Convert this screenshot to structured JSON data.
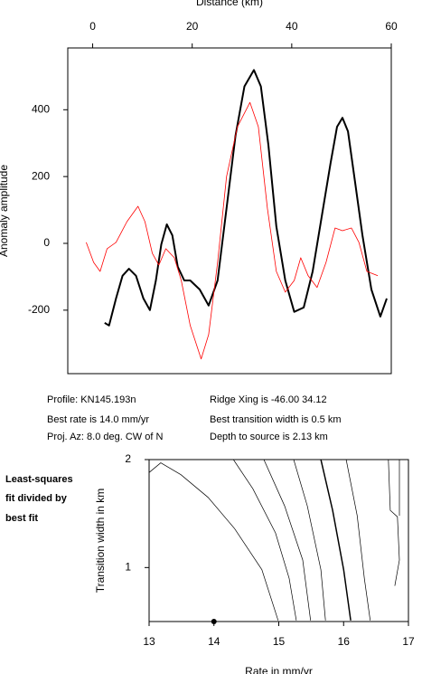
{
  "chart_data": [
    {
      "type": "line",
      "xlabel": "Distance (km)",
      "ylabel": "Anomaly amplitude",
      "xlim": [
        -5,
        60
      ],
      "xticks": [
        0,
        20,
        40,
        60
      ],
      "ylim": [
        -390,
        585
      ],
      "yticks": [
        -200,
        0,
        200,
        400
      ],
      "series": [
        {
          "color": "#000000",
          "linewidth": 2,
          "x": [
            2.4,
            3.3,
            4.7,
            6,
            7.3,
            8.7,
            10.2,
            11.5,
            12.7,
            13.8,
            14.9,
            16,
            17.1,
            18.4,
            19.6,
            21.5,
            23.3,
            25.1,
            26.9,
            28.7,
            30.5,
            32.4,
            33.8,
            35.3,
            36.9,
            38.7,
            40.5,
            42.4,
            44.2,
            46,
            47.8,
            49.1,
            50.2,
            51.3,
            52.7,
            54.2,
            56,
            57.8,
            59.1
          ],
          "values": [
            -238,
            -246,
            -165,
            -97,
            -76,
            -97,
            -165,
            -200,
            -111,
            -3,
            57,
            24,
            -70,
            -111,
            -111,
            -138,
            -186,
            -111,
            105,
            322,
            470,
            519,
            470,
            295,
            51,
            -111,
            -205,
            -192,
            -84,
            78,
            240,
            349,
            376,
            335,
            186,
            24,
            -138,
            -219,
            -165
          ]
        },
        {
          "color": "#ff0000",
          "linewidth": 0.8,
          "x": [
            -1.3,
            0.2,
            1.5,
            2.9,
            4.7,
            6.9,
            9.1,
            10.5,
            12,
            13.3,
            14.7,
            16.4,
            17.8,
            19.6,
            21.8,
            23.3,
            25.1,
            26.9,
            29.1,
            31.6,
            33.3,
            35.1,
            36.9,
            38.7,
            40.5,
            41.8,
            43.3,
            45.1,
            46.9,
            48.7,
            50.2,
            52,
            53.5,
            55.1,
            57.3
          ],
          "values": [
            3,
            -57,
            -84,
            -16,
            3,
            65,
            111,
            65,
            -30,
            -65,
            -16,
            -43,
            -111,
            -246,
            -346,
            -273,
            -57,
            200,
            349,
            422,
            349,
            105,
            -84,
            -146,
            -111,
            -43,
            -97,
            -132,
            -57,
            46,
            38,
            46,
            3,
            -84,
            -97
          ]
        }
      ]
    },
    {
      "type": "contour",
      "xlabel": "Rate in mm/yr",
      "ylabel": "Transition width in km",
      "xlim": [
        13,
        17
      ],
      "xticks": [
        13,
        14,
        15,
        16,
        17
      ],
      "ylim": [
        0.5,
        2
      ],
      "yticks": [
        1,
        2
      ],
      "contours": [
        {
          "linewidth": 0.7,
          "x": [
            13,
            13.18,
            13.49,
            13.91,
            14.32,
            14.74,
            14.99
          ],
          "y": [
            1.88,
            1.97,
            1.86,
            1.65,
            1.36,
            0.98,
            0.51
          ]
        },
        {
          "linewidth": 0.7,
          "x": [
            14.3,
            14.6,
            14.95,
            15.16,
            15.27
          ],
          "y": [
            2,
            1.73,
            1.32,
            0.9,
            0.51
          ]
        },
        {
          "linewidth": 0.7,
          "x": [
            14.77,
            15.09,
            15.37,
            15.49
          ],
          "y": [
            2,
            1.57,
            1.07,
            0.51
          ]
        },
        {
          "linewidth": 0.7,
          "x": [
            15.23,
            15.44,
            15.65,
            15.72
          ],
          "y": [
            2,
            1.57,
            0.98,
            0.51
          ]
        },
        {
          "linewidth": 1.5,
          "x": [
            15.65,
            15.83,
            16,
            16.11
          ],
          "y": [
            2,
            1.53,
            0.98,
            0.51
          ]
        },
        {
          "linewidth": 0.7,
          "x": [
            16.04,
            16.21,
            16.32,
            16.41
          ],
          "y": [
            2,
            1.48,
            0.9,
            0.51
          ]
        },
        {
          "linewidth": 0.7,
          "x": [
            16.69,
            16.72,
            16.83,
            16.86,
            16.79
          ],
          "y": [
            2,
            1.53,
            1.47,
            1.07,
            0.83
          ]
        },
        {
          "linewidth": 0.7,
          "x": [
            16.86,
            16.86
          ],
          "y": [
            2,
            1.48
          ]
        }
      ],
      "points": [
        {
          "x": 14,
          "y": 0.5
        }
      ]
    }
  ],
  "info": {
    "profile": "Profile: KN145.193n",
    "ridge": "Ridge Xing is -46.00 34.12",
    "rate": "Best rate is 14.0 mm/yr",
    "width": "Best transition width is 0.5 km",
    "azimuth": "Proj. Az: 8.0 deg. CW of N",
    "depth": "Depth to source is   2.13 km",
    "caption": [
      "Least-squares",
      "fit divided by",
      "best fit"
    ]
  }
}
